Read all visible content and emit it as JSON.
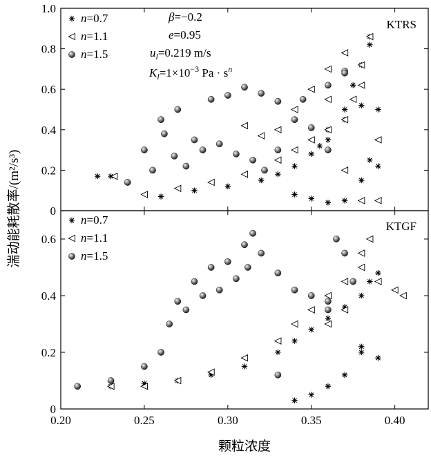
{
  "chart_data": [
    {
      "type": "scatter",
      "panel_label": "KTRS",
      "annotations": [
        "β=−0.2",
        "e=0.95",
        "u_l=0.219 m/s",
        "K_l=1×10⁻³ Pa·sⁿ"
      ],
      "xlim": [
        0.2,
        0.42
      ],
      "ylim": [
        0,
        1.0
      ],
      "yticks": [
        "0",
        "0.2",
        "0.4",
        "0.6",
        "0.8",
        "1.0"
      ],
      "legend_position": "top-left",
      "series": [
        {
          "name": "n=0.7",
          "marker": "asterisk",
          "x": [
            0.222,
            0.23,
            0.26,
            0.28,
            0.3,
            0.32,
            0.33,
            0.34,
            0.35,
            0.355,
            0.36,
            0.37,
            0.375,
            0.38,
            0.385,
            0.39,
            0.39,
            0.385,
            0.38,
            0.37,
            0.36,
            0.35,
            0.37,
            0.38,
            0.385,
            0.36,
            0.34
          ],
          "y": [
            0.17,
            0.17,
            0.07,
            0.1,
            0.12,
            0.15,
            0.18,
            0.22,
            0.28,
            0.32,
            0.4,
            0.5,
            0.62,
            0.72,
            0.82,
            0.5,
            0.22,
            0.25,
            0.15,
            0.05,
            0.04,
            0.06,
            0.45,
            0.52,
            0.86,
            0.35,
            0.08
          ]
        },
        {
          "name": "n=1.1",
          "marker": "triangle-left",
          "x": [
            0.232,
            0.25,
            0.27,
            0.29,
            0.31,
            0.33,
            0.34,
            0.35,
            0.36,
            0.37,
            0.375,
            0.38,
            0.385,
            0.39,
            0.38,
            0.37,
            0.36,
            0.35,
            0.34,
            0.33,
            0.32,
            0.31,
            0.36,
            0.37,
            0.38,
            0.39
          ],
          "y": [
            0.17,
            0.08,
            0.11,
            0.14,
            0.18,
            0.25,
            0.3,
            0.35,
            0.4,
            0.45,
            0.55,
            0.72,
            0.86,
            0.05,
            0.05,
            0.2,
            0.55,
            0.6,
            0.5,
            0.4,
            0.37,
            0.42,
            0.7,
            0.78,
            0.62,
            0.35
          ]
        },
        {
          "name": "n=1.5",
          "marker": "sphere",
          "x": [
            0.24,
            0.25,
            0.26,
            0.27,
            0.28,
            0.29,
            0.3,
            0.31,
            0.32,
            0.33,
            0.34,
            0.35,
            0.36,
            0.37,
            0.255,
            0.262,
            0.268,
            0.275,
            0.285,
            0.295,
            0.305,
            0.315,
            0.322,
            0.33,
            0.345,
            0.36,
            0.37
          ],
          "y": [
            0.14,
            0.3,
            0.45,
            0.5,
            0.35,
            0.55,
            0.57,
            0.61,
            0.58,
            0.54,
            0.45,
            0.41,
            0.3,
            0.69,
            0.2,
            0.38,
            0.27,
            0.22,
            0.3,
            0.33,
            0.28,
            0.25,
            0.2,
            0.3,
            0.55,
            0.62,
            0.68
          ]
        }
      ]
    },
    {
      "type": "scatter",
      "panel_label": "KTGF",
      "xlim": [
        0.2,
        0.42
      ],
      "ylim": [
        0,
        0.7
      ],
      "xticks": [
        "0.20",
        "0.25",
        "0.30",
        "0.35",
        "0.40"
      ],
      "yticks": [
        "0",
        "0.2",
        "0.4",
        "0.6"
      ],
      "xlabel": "颗粒浓度",
      "ylabel": "湍动能耗散率/(m²/s³)",
      "legend_position": "top-left",
      "series": [
        {
          "name": "n=0.7",
          "marker": "asterisk",
          "x": [
            0.21,
            0.23,
            0.25,
            0.27,
            0.29,
            0.31,
            0.33,
            0.34,
            0.35,
            0.36,
            0.37,
            0.38,
            0.385,
            0.39,
            0.35,
            0.36,
            0.37,
            0.38,
            0.34
          ],
          "y": [
            0.08,
            0.08,
            0.09,
            0.1,
            0.12,
            0.15,
            0.2,
            0.24,
            0.28,
            0.32,
            0.36,
            0.4,
            0.45,
            0.48,
            0.05,
            0.08,
            0.12,
            0.2,
            0.03
          ],
          "extra_x": [
            0.39,
            0.38
          ],
          "extra_y": [
            0.18,
            0.22
          ]
        },
        {
          "name": "n=1.1",
          "marker": "triangle-left",
          "x": [
            0.23,
            0.25,
            0.27,
            0.29,
            0.31,
            0.33,
            0.34,
            0.35,
            0.36,
            0.37,
            0.38,
            0.385,
            0.39,
            0.4,
            0.405,
            0.36,
            0.37,
            0.38
          ],
          "y": [
            0.08,
            0.08,
            0.1,
            0.13,
            0.18,
            0.24,
            0.3,
            0.35,
            0.4,
            0.45,
            0.5,
            0.6,
            0.45,
            0.42,
            0.4,
            0.3,
            0.35,
            0.55
          ]
        },
        {
          "name": "n=1.5",
          "marker": "sphere",
          "x": [
            0.21,
            0.23,
            0.25,
            0.26,
            0.27,
            0.28,
            0.29,
            0.3,
            0.31,
            0.315,
            0.32,
            0.33,
            0.34,
            0.35,
            0.36,
            0.365,
            0.37,
            0.375,
            0.265,
            0.275,
            0.285,
            0.295,
            0.305,
            0.312,
            0.33,
            0.36
          ],
          "y": [
            0.08,
            0.1,
            0.15,
            0.2,
            0.38,
            0.45,
            0.5,
            0.52,
            0.58,
            0.62,
            0.55,
            0.48,
            0.42,
            0.4,
            0.38,
            0.6,
            0.55,
            0.45,
            0.3,
            0.35,
            0.4,
            0.42,
            0.46,
            0.5,
            0.12,
            0.35
          ]
        }
      ]
    }
  ],
  "legend": {
    "top": [
      {
        "label_var": "n",
        "label_val": "=0.7"
      },
      {
        "label_var": "n",
        "label_val": "=1.1"
      },
      {
        "label_var": "n",
        "label_val": "=1.5"
      }
    ],
    "bottom": [
      {
        "label_var": "n",
        "label_val": "=0.7"
      },
      {
        "label_var": "n",
        "label_val": "=1.1"
      },
      {
        "label_var": "n",
        "label_val": "=1.5"
      }
    ]
  }
}
